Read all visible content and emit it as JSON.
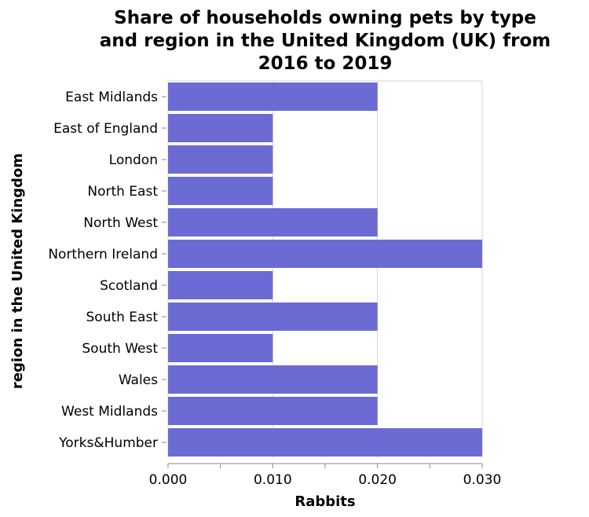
{
  "chart_data": {
    "type": "bar",
    "orientation": "horizontal",
    "title": "Share of households owning pets by type and region in the United Kingdom (UK) from 2016 to 2019",
    "title_lines": [
      "Share of households owning pets by type",
      "and region in the United Kingdom (UK) from",
      "2016 to 2019"
    ],
    "xlabel": "Rabbits",
    "ylabel": "region in the United Kingdom",
    "xlim": [
      0,
      0.03
    ],
    "x_ticks": [
      "0.000",
      "0.010",
      "0.020",
      "0.030"
    ],
    "grid": true,
    "categories": [
      "East Midlands",
      "East of England",
      "London",
      "North East",
      "North West",
      "Northern Ireland",
      "Scotland",
      "South East",
      "South West",
      "Wales",
      "West Midlands",
      "Yorks&Humber"
    ],
    "values": [
      0.02,
      0.01,
      0.01,
      0.01,
      0.02,
      0.03,
      0.01,
      0.02,
      0.01,
      0.02,
      0.02,
      0.03
    ],
    "bar_color": "#6b6bd3"
  }
}
